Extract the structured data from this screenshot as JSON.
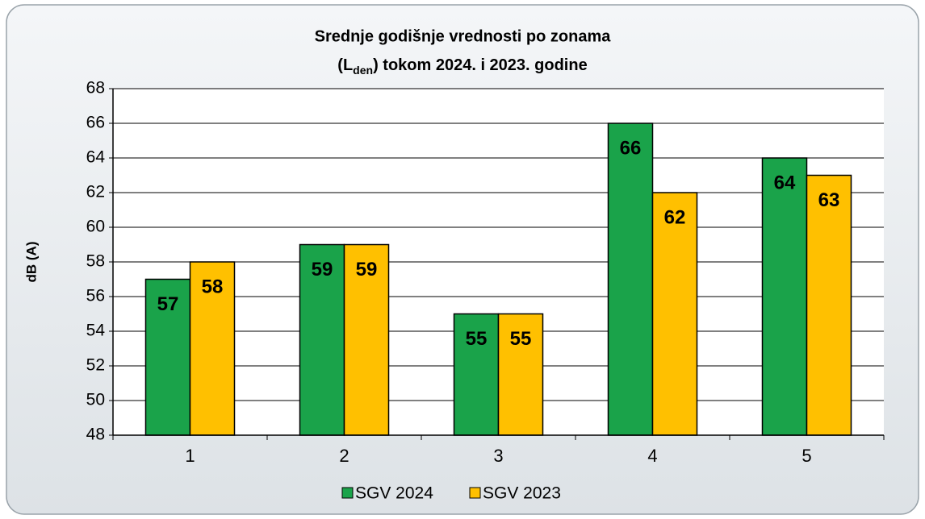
{
  "chart_data": {
    "type": "bar",
    "title": "Srednje godišnje vrednosti po zonama",
    "subtitle": {
      "before": "(L",
      "sub": "den",
      "after": ") tokom 2024. i 2023. godine"
    },
    "y_label": "dB (A)",
    "categories": [
      "1",
      "2",
      "3",
      "4",
      "5"
    ],
    "series": [
      {
        "name": "SGV 2024",
        "color": "#1aa34a",
        "values": [
          57,
          59,
          55,
          66,
          64
        ]
      },
      {
        "name": "SGV 2023",
        "color": "#ffc000",
        "values": [
          58,
          59,
          55,
          62,
          63
        ]
      }
    ],
    "ylim": [
      48,
      68
    ],
    "yticks": [
      48,
      50,
      52,
      54,
      56,
      58,
      60,
      62,
      64,
      66,
      68
    ],
    "grid": true,
    "legend": "bottom"
  }
}
